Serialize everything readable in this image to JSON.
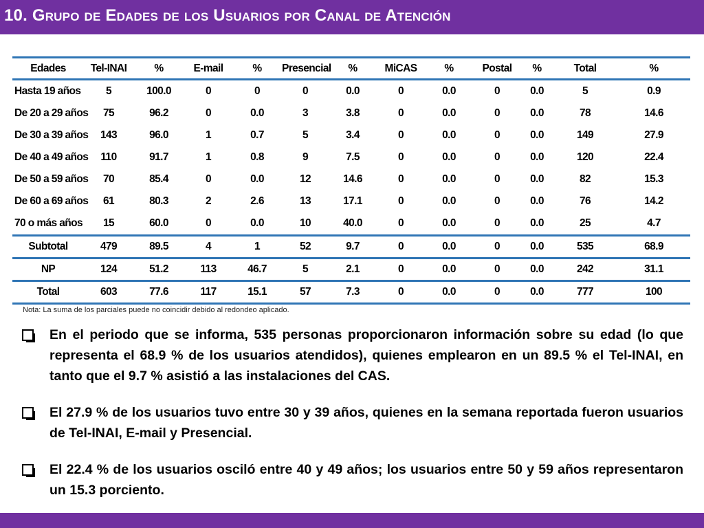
{
  "slide": {
    "title": "10. Grupo de  Edades de los Usuarios por Canal de Atención"
  },
  "table": {
    "headers": [
      "Edades",
      "Tel-INAI",
      "%",
      "E-mail",
      "%",
      "Presencial",
      "%",
      "MiCAS",
      "%",
      "Postal",
      "%",
      "Total",
      "%"
    ],
    "rows": [
      [
        "Hasta 19 años",
        "5",
        "100.0",
        "0",
        "0",
        "0",
        "0.0",
        "0",
        "0.0",
        "0",
        "0.0",
        "5",
        "0.9"
      ],
      [
        "De 20 a 29 años",
        "75",
        "96.2",
        "0",
        "0.0",
        "3",
        "3.8",
        "0",
        "0.0",
        "0",
        "0.0",
        "78",
        "14.6"
      ],
      [
        "De 30 a 39 años",
        "143",
        "96.0",
        "1",
        "0.7",
        "5",
        "3.4",
        "0",
        "0.0",
        "0",
        "0.0",
        "149",
        "27.9"
      ],
      [
        "De 40 a 49 años",
        "110",
        "91.7",
        "1",
        "0.8",
        "9",
        "7.5",
        "0",
        "0.0",
        "0",
        "0.0",
        "120",
        "22.4"
      ],
      [
        "De 50 a 59 años",
        "70",
        "85.4",
        "0",
        "0.0",
        "12",
        "14.6",
        "0",
        "0.0",
        "0",
        "0.0",
        "82",
        "15.3"
      ],
      [
        "De 60 a 69 años",
        "61",
        "80.3",
        "2",
        "2.6",
        "13",
        "17.1",
        "0",
        "0.0",
        "0",
        "0.0",
        "76",
        "14.2"
      ],
      [
        "70 o más años",
        "15",
        "60.0",
        "0",
        "0.0",
        "10",
        "40.0",
        "0",
        "0.0",
        "0",
        "0.0",
        "25",
        "4.7"
      ]
    ],
    "summary_rows": [
      [
        "Subtotal",
        "479",
        "89.5",
        "4",
        "1",
        "52",
        "9.7",
        "0",
        "0.0",
        "0",
        "0.0",
        "535",
        "68.9"
      ],
      [
        "NP",
        "124",
        "51.2",
        "113",
        "46.7",
        "5",
        "2.1",
        "0",
        "0.0",
        "0",
        "0.0",
        "242",
        "31.1"
      ],
      [
        "Total",
        "603",
        "77.6",
        "117",
        "15.1",
        "57",
        "7.3",
        "0",
        "0.0",
        "0",
        "0.0",
        "777",
        "100"
      ]
    ]
  },
  "note": "Nota: La suma de los parciales puede no coincidir debido al redondeo aplicado.",
  "bullets": [
    "En el periodo que se informa, 535 personas proporcionaron información sobre su edad (lo que representa el 68.9 % de los usuarios atendidos), quienes emplearon en un 89.5 % el Tel-INAI, en tanto que el 9.7 % asistió a las instalaciones del CAS.",
    "El 27.9 % de los usuarios tuvo entre 30 y 39 años, quienes en la semana reportada fueron usuarios de Tel-INAI, E-mail y Presencial.",
    "El 22.4 % de los usuarios osciló entre 40 y 49 años; los usuarios entre 50 y 59 años representaron un 15.3 porciento."
  ],
  "colors": {
    "brand_purple": "#7030a0",
    "table_rule_blue": "#2f75b5"
  }
}
